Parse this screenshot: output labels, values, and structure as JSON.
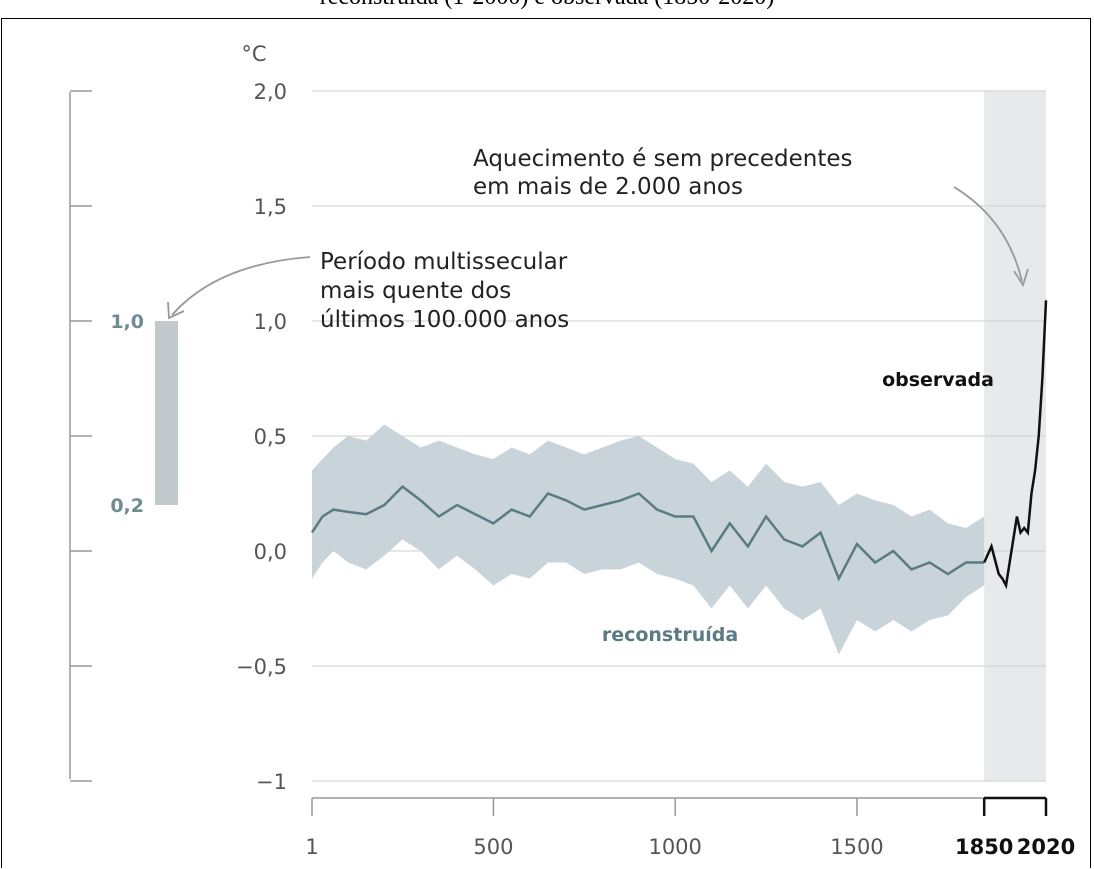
{
  "title": "reconstruída (1-2000) e observada (1850-2020)",
  "chart_data": {
    "type": "line",
    "title": "reconstruída (1-2000) e observada (1850-2020)",
    "unit": "°C",
    "xlim": [
      1,
      2020
    ],
    "ylim": [
      -1,
      2
    ],
    "x_ticks": [
      "1",
      "500",
      "1000",
      "1500",
      "1850",
      "2020"
    ],
    "x_ticks_bold": [
      "1850",
      "2020"
    ],
    "y_ticks": [
      "2,0",
      "1,5",
      "1,0",
      "0,5",
      "0,0",
      "−0,5",
      "−1"
    ],
    "y_tick_values": [
      2,
      1.5,
      1,
      0.5,
      0,
      -0.5,
      -1
    ],
    "shaded_period": [
      1850,
      2020
    ],
    "series": [
      {
        "name": "reconstruída",
        "color": "#5c7a82",
        "band_color": "#c9d4da",
        "x": [
          1,
          30,
          60,
          100,
          150,
          200,
          250,
          300,
          350,
          400,
          450,
          500,
          550,
          600,
          650,
          700,
          750,
          800,
          850,
          900,
          950,
          1000,
          1050,
          1100,
          1150,
          1200,
          1250,
          1300,
          1350,
          1400,
          1450,
          1500,
          1550,
          1600,
          1650,
          1700,
          1750,
          1800,
          1850
        ],
        "y": [
          0.08,
          0.15,
          0.18,
          0.17,
          0.16,
          0.2,
          0.28,
          0.22,
          0.15,
          0.2,
          0.16,
          0.12,
          0.18,
          0.15,
          0.25,
          0.22,
          0.18,
          0.2,
          0.22,
          0.25,
          0.18,
          0.15,
          0.15,
          0.0,
          0.12,
          0.02,
          0.15,
          0.05,
          0.02,
          0.08,
          -0.12,
          0.03,
          -0.05,
          0.0,
          -0.08,
          -0.05,
          -0.1,
          -0.05,
          -0.05
        ],
        "lower": [
          -0.12,
          -0.05,
          0.0,
          -0.05,
          -0.08,
          -0.02,
          0.05,
          0.0,
          -0.08,
          -0.02,
          -0.08,
          -0.15,
          -0.1,
          -0.12,
          -0.05,
          -0.05,
          -0.1,
          -0.08,
          -0.08,
          -0.05,
          -0.1,
          -0.12,
          -0.15,
          -0.25,
          -0.15,
          -0.25,
          -0.15,
          -0.25,
          -0.3,
          -0.25,
          -0.45,
          -0.3,
          -0.35,
          -0.3,
          -0.35,
          -0.3,
          -0.28,
          -0.2,
          -0.15
        ],
        "upper": [
          0.35,
          0.4,
          0.45,
          0.5,
          0.48,
          0.55,
          0.5,
          0.45,
          0.48,
          0.45,
          0.42,
          0.4,
          0.45,
          0.42,
          0.48,
          0.45,
          0.42,
          0.45,
          0.48,
          0.5,
          0.45,
          0.4,
          0.38,
          0.3,
          0.35,
          0.28,
          0.38,
          0.3,
          0.28,
          0.3,
          0.2,
          0.25,
          0.22,
          0.2,
          0.15,
          0.18,
          0.12,
          0.1,
          0.15
        ]
      },
      {
        "name": "observada",
        "color": "#111111",
        "x": [
          1850,
          1870,
          1890,
          1900,
          1910,
          1920,
          1940,
          1950,
          1960,
          1970,
          1980,
          1990,
          2000,
          2010,
          2020
        ],
        "y": [
          -0.05,
          0.02,
          -0.1,
          -0.12,
          -0.15,
          -0.05,
          0.15,
          0.08,
          0.1,
          0.08,
          0.25,
          0.35,
          0.5,
          0.75,
          1.09
        ]
      }
    ],
    "annotations": [
      {
        "text_lines": [
          "Aquecimento é sem precedentes",
          "em mais de 2.000 anos"
        ]
      },
      {
        "text_lines": [
          "Período multissecular",
          "mais quente dos",
          "últimos 100.000 anos"
        ]
      }
    ],
    "inset": {
      "range": [
        0.2,
        1.0
      ],
      "labels": [
        "1,0",
        "0,2"
      ],
      "color": "#c2c9cc"
    }
  }
}
